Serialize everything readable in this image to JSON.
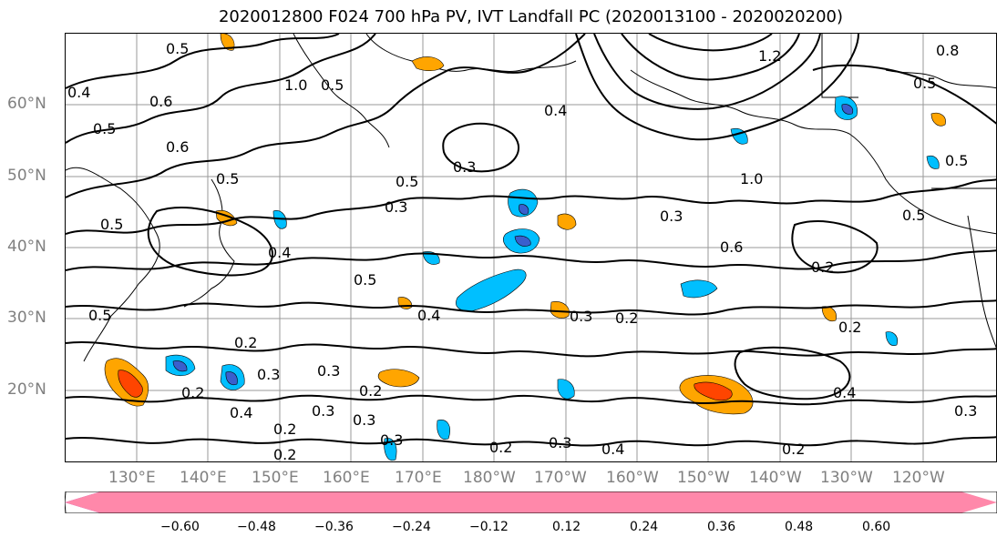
{
  "title": "2020012800 F024 700 hPa PV, IVT Landfall PC (2020013100 - 2020020200)",
  "lat_labels": [
    "60°N",
    "50°N",
    "40°N",
    "30°N",
    "20°N"
  ],
  "lon_labels": [
    "130°E",
    "140°E",
    "150°E",
    "160°E",
    "170°E",
    "180°W",
    "170°W",
    "160°W",
    "150°W",
    "140°W",
    "130°W",
    "120°W"
  ],
  "colorbar": {
    "tick_labels": [
      "−0.60",
      "−0.48",
      "−0.36",
      "−0.24",
      "−0.12",
      "0.12",
      "0.24",
      "0.36",
      "0.48",
      "0.60"
    ],
    "colors": [
      "#9932cc",
      "#00008b",
      "#3a5fcd",
      "#00bfff",
      "#b0e2ff",
      "#ffffff",
      "#ffec8b",
      "#ffa500",
      "#ff4500",
      "#b22222",
      "#ff88aa"
    ]
  },
  "contour_labels": [
    "0.5",
    "0.6",
    "1.0",
    "0.5",
    "0.4",
    "0.3",
    "1.2",
    "0.8",
    "0.5",
    "0.4",
    "0.6",
    "0.5",
    "0.5",
    "0.3",
    "0.3",
    "0.5",
    "0.4",
    "0.3",
    "0.6",
    "0.4",
    "0.5",
    "0.5",
    "0.4",
    "0.3",
    "0.2",
    "0.2",
    "0.2",
    "0.3",
    "0.3",
    "0.2",
    "0.3",
    "0.2",
    "0.3",
    "0.2",
    "0.2",
    "0.3",
    "0.2",
    "0.4",
    "0.2",
    "0.4",
    "0.3",
    "0.2",
    "1.0",
    "0.5",
    "0.5",
    "0.5"
  ]
}
